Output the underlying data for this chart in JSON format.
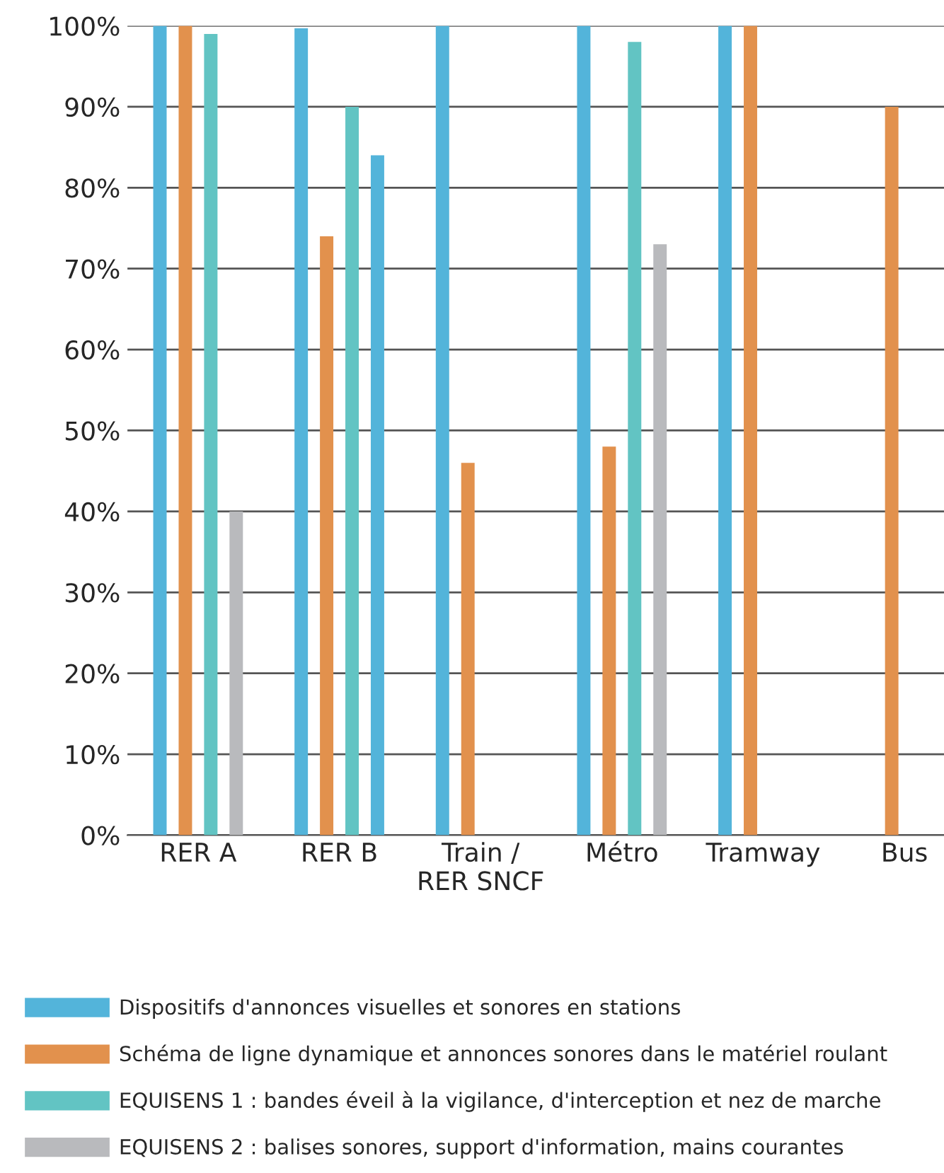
{
  "chart_data": {
    "type": "bar",
    "categories": [
      "RER A",
      "RER B",
      "Train /\nRER SNCF",
      "Métro",
      "Tramway",
      "Bus"
    ],
    "series": [
      {
        "name": "Dispositifs d'annonces visuelles et sonores en stations",
        "color": "#53b4da",
        "values": [
          100,
          99.7,
          100,
          100,
          100,
          null
        ]
      },
      {
        "name": "Schéma de ligne dynamique et annonces sonores dans le matériel roulant",
        "color": "#e2914d",
        "values": [
          100,
          74,
          46,
          48,
          100,
          90
        ]
      },
      {
        "name": "EQUISENS 1 : bandes éveil à la vigilance, d'interception et nez de marche",
        "color": "#62c4c3",
        "values": [
          99,
          90,
          null,
          98,
          null,
          null
        ]
      },
      {
        "name": "EQUISENS 2 : balises sonores, support d'information, mains courantes",
        "color": "#b9babd",
        "colors": [
          "#b9babd",
          "#53b4da",
          "#b9babd",
          "#b9babd",
          "#b9babd",
          "#b9babd"
        ],
        "values": [
          40,
          84,
          null,
          73,
          null,
          null
        ]
      }
    ],
    "ylim": [
      0,
      100
    ],
    "yticks": [
      {
        "value": 0,
        "label": "0%"
      },
      {
        "value": 10,
        "label": "10%"
      },
      {
        "value": 20,
        "label": "20%"
      },
      {
        "value": 30,
        "label": "30%"
      },
      {
        "value": 40,
        "label": "40%"
      },
      {
        "value": 50,
        "label": "50%"
      },
      {
        "value": 60,
        "label": "60%"
      },
      {
        "value": 70,
        "label": "70%"
      },
      {
        "value": 80,
        "label": "80%"
      },
      {
        "value": 90,
        "label": "90%"
      },
      {
        "value": 100,
        "label": "100%"
      }
    ],
    "grid": "y",
    "legend": "bottom"
  }
}
